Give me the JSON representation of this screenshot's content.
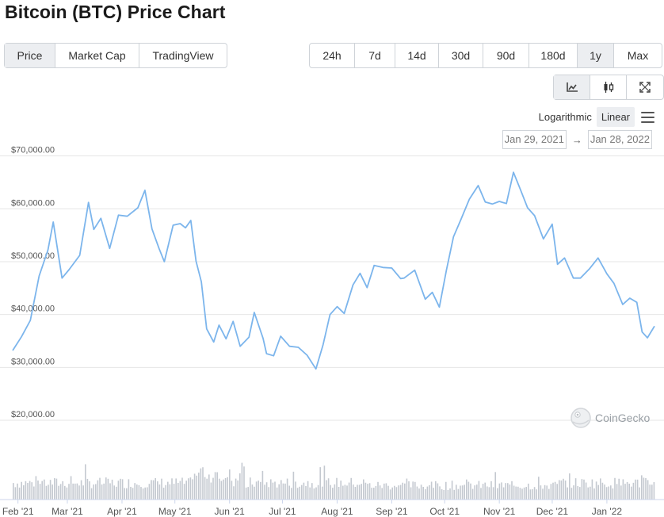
{
  "page": {
    "title": "Bitcoin (BTC) Price Chart"
  },
  "type_tabs": [
    {
      "label": "Price",
      "active": true
    },
    {
      "label": "Market Cap",
      "active": false
    },
    {
      "label": "TradingView",
      "active": false
    }
  ],
  "range_tabs": [
    {
      "label": "24h",
      "active": false
    },
    {
      "label": "7d",
      "active": false
    },
    {
      "label": "14d",
      "active": false
    },
    {
      "label": "30d",
      "active": false
    },
    {
      "label": "90d",
      "active": false
    },
    {
      "label": "180d",
      "active": false
    },
    {
      "label": "1y",
      "active": true
    },
    {
      "label": "Max",
      "active": false
    }
  ],
  "view_tabs": [
    {
      "icon": "line-chart-icon",
      "active": true
    },
    {
      "icon": "candlestick-icon",
      "active": false
    },
    {
      "icon": "fullscreen-icon",
      "active": false
    }
  ],
  "scale": {
    "log_label": "Logarithmic",
    "linear_label": "Linear",
    "active": "Linear"
  },
  "date_range": {
    "from": "Jan 29, 2021",
    "arrow": "→",
    "to": "Jan 28, 2022"
  },
  "watermark": {
    "text": "CoinGecko",
    "icon": "coingecko-logo-icon"
  },
  "colors": {
    "line": "#7cb5ec",
    "volume": "#c4c9d0",
    "grid": "#e6e6e6",
    "active_bg": "#eceef1"
  },
  "chart_data": {
    "type": "line",
    "title": "",
    "xlabel": "",
    "ylabel": "",
    "ylim": [
      14000,
      71000
    ],
    "y_ticks": [
      "$20,000.00",
      "$30,000.00",
      "$40,000.00",
      "$50,000.00",
      "$60,000.00",
      "$70,000.00"
    ],
    "y_tick_values": [
      20000,
      30000,
      40000,
      50000,
      60000,
      70000
    ],
    "x_ticks": [
      "Feb '21",
      "Mar '21",
      "Apr '21",
      "May '21",
      "Jun '21",
      "Jul '21",
      "Aug '21",
      "Sep '21",
      "Oct '21",
      "Nov '21",
      "Dec '21",
      "Jan '22"
    ],
    "x_tick_dates": [
      "2021-02-01",
      "2021-03-01",
      "2021-04-01",
      "2021-05-01",
      "2021-06-01",
      "2021-07-01",
      "2021-08-01",
      "2021-09-01",
      "2021-10-01",
      "2021-11-01",
      "2021-12-01",
      "2022-01-01"
    ],
    "x_range": [
      "2021-01-29",
      "2022-01-28"
    ],
    "grid": true,
    "series": [
      {
        "x": [
          "2021-01-29",
          "2021-02-03",
          "2021-02-08",
          "2021-02-13",
          "2021-02-18",
          "2021-02-21",
          "2021-02-26",
          "2021-03-02",
          "2021-03-08",
          "2021-03-13",
          "2021-03-16",
          "2021-03-20",
          "2021-03-25",
          "2021-03-30",
          "2021-04-04",
          "2021-04-10",
          "2021-04-14",
          "2021-04-18",
          "2021-04-22",
          "2021-04-25",
          "2021-04-30",
          "2021-05-04",
          "2021-05-07",
          "2021-05-10",
          "2021-05-13",
          "2021-05-16",
          "2021-05-19",
          "2021-05-23",
          "2021-05-26",
          "2021-05-30",
          "2021-06-03",
          "2021-06-07",
          "2021-06-12",
          "2021-06-15",
          "2021-06-20",
          "2021-06-22",
          "2021-06-26",
          "2021-06-30",
          "2021-07-05",
          "2021-07-10",
          "2021-07-15",
          "2021-07-20",
          "2021-07-24",
          "2021-07-28",
          "2021-08-01",
          "2021-08-05",
          "2021-08-10",
          "2021-08-14",
          "2021-08-18",
          "2021-08-22",
          "2021-08-27",
          "2021-09-01",
          "2021-09-06",
          "2021-09-08",
          "2021-09-14",
          "2021-09-20",
          "2021-09-24",
          "2021-09-28",
          "2021-10-02",
          "2021-10-06",
          "2021-10-10",
          "2021-10-15",
          "2021-10-20",
          "2021-10-24",
          "2021-10-28",
          "2021-11-01",
          "2021-11-05",
          "2021-11-09",
          "2021-11-13",
          "2021-11-17",
          "2021-11-21",
          "2021-11-26",
          "2021-12-01",
          "2021-12-04",
          "2021-12-08",
          "2021-12-13",
          "2021-12-17",
          "2021-12-22",
          "2021-12-27",
          "2022-01-01",
          "2022-01-05",
          "2022-01-10",
          "2022-01-14",
          "2022-01-18",
          "2022-01-21",
          "2022-01-24",
          "2022-01-28"
        ],
        "values": [
          33200,
          35800,
          38900,
          47300,
          52200,
          57500,
          46900,
          48500,
          51200,
          61200,
          56100,
          58200,
          52500,
          58800,
          58600,
          60200,
          63500,
          56200,
          52500,
          50000,
          56900,
          57200,
          56400,
          57800,
          50100,
          46200,
          37300,
          34800,
          38000,
          35400,
          38700,
          34000,
          35700,
          40400,
          35500,
          32600,
          32200,
          35900,
          34000,
          33800,
          32300,
          29700,
          34200,
          40000,
          41500,
          40200,
          45600,
          47800,
          45100,
          49300,
          48900,
          48800,
          46800,
          46900,
          48400,
          42900,
          44200,
          41400,
          48400,
          54700,
          57800,
          61800,
          64400,
          61300,
          60900,
          61400,
          61000,
          66900,
          63600,
          60200,
          58700,
          54300,
          57100,
          49500,
          50700,
          46900,
          46900,
          48600,
          50700,
          47700,
          45900,
          41900,
          43100,
          42300,
          36700,
          35600,
          37800
        ]
      }
    ]
  }
}
